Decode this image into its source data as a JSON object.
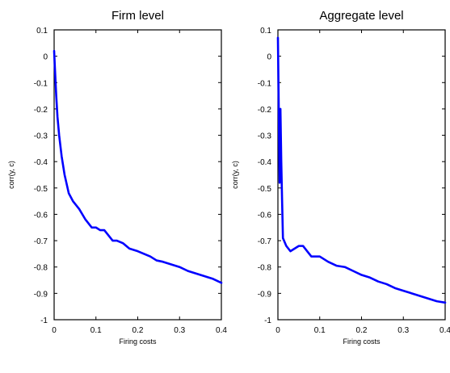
{
  "chart_data": [
    {
      "type": "line",
      "title": "Firm level",
      "xlabel": "Firing costs",
      "ylabel": "corr(y, c)",
      "xlim": [
        0,
        0.4
      ],
      "ylim": [
        -1,
        0.1
      ],
      "xticks": [
        "0",
        "0.1",
        "0.2",
        "0.3",
        "0.4"
      ],
      "yticks": [
        "0.1",
        "0",
        "-0.1",
        "-0.2",
        "-0.3",
        "-0.4",
        "-0.5",
        "-0.6",
        "-0.7",
        "-0.8",
        "-0.9",
        "-1"
      ],
      "line_color": "#0000ff",
      "series": [
        {
          "x": [
            0.0,
            0.002,
            0.005,
            0.008,
            0.012,
            0.018,
            0.025,
            0.035,
            0.045,
            0.06,
            0.075,
            0.09,
            0.1,
            0.11,
            0.12,
            0.13,
            0.14,
            0.15,
            0.165,
            0.18,
            0.2,
            0.215,
            0.23,
            0.245,
            0.26,
            0.28,
            0.3,
            0.32,
            0.34,
            0.36,
            0.38,
            0.4
          ],
          "y": [
            0.02,
            -0.05,
            -0.15,
            -0.23,
            -0.3,
            -0.38,
            -0.45,
            -0.52,
            -0.55,
            -0.58,
            -0.62,
            -0.65,
            -0.65,
            -0.66,
            -0.66,
            -0.68,
            -0.7,
            -0.7,
            -0.71,
            -0.73,
            -0.74,
            -0.75,
            -0.76,
            -0.775,
            -0.78,
            -0.79,
            -0.8,
            -0.815,
            -0.825,
            -0.835,
            -0.845,
            -0.86
          ]
        }
      ]
    },
    {
      "type": "line",
      "title": "Aggregate level",
      "xlabel": "Firing costs",
      "ylabel": "corr(y, c)",
      "xlim": [
        0,
        0.4
      ],
      "ylim": [
        -1,
        0.1
      ],
      "xticks": [
        "0",
        "0.1",
        "0.2",
        "0.3",
        "0.4"
      ],
      "yticks": [
        "0.1",
        "0",
        "-0.1",
        "-0.2",
        "-0.3",
        "-0.4",
        "-0.5",
        "-0.6",
        "-0.7",
        "-0.8",
        "-0.9",
        "-1"
      ],
      "line_color": "#0000ff",
      "series": [
        {
          "x": [
            0.0,
            0.002,
            0.004,
            0.006,
            0.008,
            0.01,
            0.012,
            0.02,
            0.03,
            0.04,
            0.05,
            0.06,
            0.07,
            0.08,
            0.09,
            0.1,
            0.11,
            0.12,
            0.14,
            0.16,
            0.18,
            0.2,
            0.22,
            0.24,
            0.26,
            0.28,
            0.3,
            0.32,
            0.34,
            0.36,
            0.38,
            0.4
          ],
          "y": [
            0.07,
            -0.2,
            -0.48,
            -0.2,
            -0.4,
            -0.55,
            -0.69,
            -0.72,
            -0.74,
            -0.73,
            -0.72,
            -0.72,
            -0.74,
            -0.76,
            -0.76,
            -0.76,
            -0.77,
            -0.78,
            -0.795,
            -0.8,
            -0.815,
            -0.83,
            -0.84,
            -0.855,
            -0.865,
            -0.88,
            -0.89,
            -0.9,
            -0.91,
            -0.92,
            -0.93,
            -0.935
          ]
        }
      ]
    }
  ]
}
